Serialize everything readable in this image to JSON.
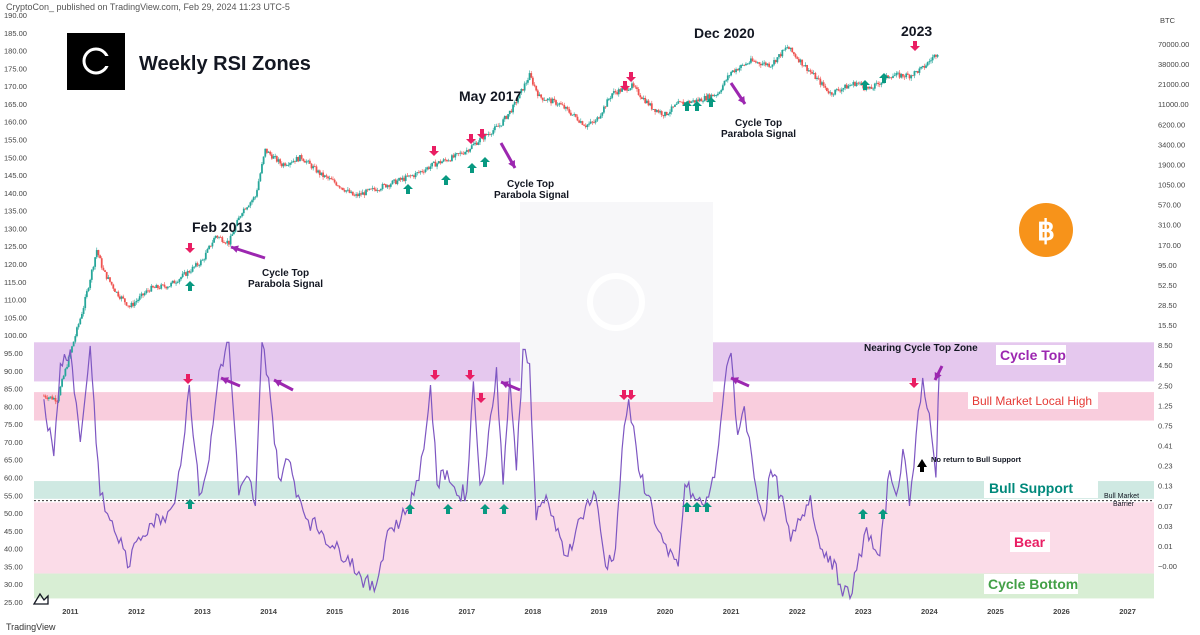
{
  "header": {
    "published": "CryptoCon_ published on TradingView.com, Feb 29, 2024 11:23 UTC-5",
    "footer_brand": "TradingView"
  },
  "title": "Weekly RSI Zones",
  "colors": {
    "price_up": "#26a69a",
    "price_down": "#ef5350",
    "rsi_line": "#7e57c2",
    "arrow_up": "#089981",
    "arrow_down": "#e91e63",
    "annotation_arrow": "#9c27b0",
    "cycle_top_zone": "#e1bee7",
    "bull_high_zone": "#f8bbd0",
    "bull_support_zone": "#c8e6c9",
    "bear_zone": "#fce4ec",
    "cycle_bottom_zone": "#dcedc8",
    "bitcoin": "#f7931a"
  },
  "icons": {
    "logo": "cryptocon-logo-icon",
    "coin": "bitcoin-icon",
    "tv": "tradingview-icon"
  },
  "zones": {
    "cycle_top": "Cycle Top",
    "bull_local_high": "Bull Market Local High",
    "bull_support": "Bull Support",
    "bear": "Bear",
    "cycle_bottom": "Cycle Bottom",
    "barrier_line1": "Bull Market",
    "barrier_line2": "Barrier"
  },
  "annotations": {
    "feb2013": "Feb 2013",
    "may2017": "May 2017",
    "dec2020": "Dec 2020",
    "y2023": "2023",
    "cycle_top_line1": "Cycle Top",
    "cycle_top_line2": "Parabola Signal",
    "nearing": "Nearing Cycle Top Zone",
    "no_return": "No return to Bull Support"
  },
  "chart_data": {
    "type": "line",
    "title": "Weekly RSI Zones",
    "xlabel": "",
    "ylabel": "",
    "x_ticks": [
      "2011",
      "2012",
      "2013",
      "2014",
      "2015",
      "2016",
      "2017",
      "2018",
      "2019",
      "2020",
      "2021",
      "2022",
      "2023",
      "2024",
      "2025",
      "2026",
      "2027"
    ],
    "x_range": [
      2010.45,
      2027.4
    ],
    "left_axis": {
      "ticks": [
        "190.00",
        "185.00",
        "180.00",
        "175.00",
        "170.00",
        "165.00",
        "160.00",
        "155.00",
        "150.00",
        "145.00",
        "140.00",
        "135.00",
        "130.00",
        "125.00",
        "120.00",
        "115.00",
        "110.00",
        "105.00",
        "100.00",
        "95.00",
        "90.00",
        "85.00",
        "80.00",
        "75.00",
        "70.00",
        "65.00",
        "60.00",
        "55.00",
        "50.00",
        "45.00",
        "40.00",
        "35.00",
        "30.00",
        "25.00"
      ],
      "range": [
        25,
        190
      ]
    },
    "right_axis": {
      "unit": "BTC",
      "scale": "log",
      "ticks": [
        "70000.00",
        "38000.00",
        "21000.00",
        "11000.00",
        "6200.00",
        "3400.00",
        "1900.00",
        "1050.00",
        "570.00",
        "310.00",
        "170.00",
        "95.00",
        "52.50",
        "28.50",
        "15.50",
        "8.50",
        "4.50",
        "2.50",
        "1.25",
        "0.75",
        "0.41",
        "0.23",
        "0.13",
        "0.07",
        "0.03",
        "0.01",
        "−0.00"
      ]
    },
    "rsi_zones": [
      {
        "name": "Cycle Top",
        "from": 87,
        "to": 98
      },
      {
        "name": "Bull Market Local High",
        "from": 76,
        "to": 84
      },
      {
        "name": "Bull Support",
        "from": 54,
        "to": 59
      },
      {
        "name": "Bear",
        "from": 33,
        "to": 53
      },
      {
        "name": "Cycle Bottom",
        "from": 26,
        "to": 33
      }
    ],
    "bull_market_barrier": 53.5,
    "price_series": {
      "name": "",
      "x": [
        2010.6,
        2010.8,
        2011.0,
        2011.2,
        2011.4,
        2011.5,
        2011.7,
        2011.9,
        2012.2,
        2012.5,
        2012.8,
        2013.0,
        2013.2,
        2013.4,
        2013.6,
        2013.8,
        2013.95,
        2014.2,
        2014.5,
        2014.8,
        2015.0,
        2015.3,
        2015.6,
        2015.9,
        2016.2,
        2016.5,
        2016.8,
        2017.0,
        2017.2,
        2017.5,
        2017.7,
        2017.95,
        2018.1,
        2018.4,
        2018.8,
        2018.95,
        2019.2,
        2019.5,
        2019.8,
        2020.0,
        2020.2,
        2020.5,
        2020.8,
        2021.0,
        2021.3,
        2021.6,
        2021.85,
        2022.0,
        2022.3,
        2022.5,
        2022.9,
        2023.1,
        2023.4,
        2023.7,
        2023.9,
        2024.15
      ],
      "y": [
        83,
        82,
        95,
        108,
        124,
        118,
        112,
        108,
        113,
        114,
        118,
        121,
        128,
        126,
        135,
        139,
        152,
        148,
        150,
        145,
        143,
        139,
        141,
        143,
        145,
        148,
        150,
        152,
        155,
        159,
        164,
        173,
        167,
        165,
        159,
        160,
        168,
        170,
        164,
        162,
        165,
        166,
        168,
        174,
        177,
        176,
        181,
        178,
        172,
        168,
        171,
        169,
        173,
        173,
        175,
        180
      ]
    },
    "rsi_series": {
      "name": "",
      "x": [
        2010.6,
        2010.75,
        2010.85,
        2011.0,
        2011.15,
        2011.3,
        2011.45,
        2011.6,
        2011.8,
        2011.9,
        2012.0,
        2012.2,
        2012.4,
        2012.55,
        2012.7,
        2012.8,
        2012.95,
        2013.1,
        2013.25,
        2013.4,
        2013.55,
        2013.7,
        2013.8,
        2013.9,
        2014.0,
        2014.15,
        2014.3,
        2014.45,
        2014.6,
        2014.8,
        2015.0,
        2015.2,
        2015.4,
        2015.6,
        2015.8,
        2016.0,
        2016.2,
        2016.35,
        2016.45,
        2016.55,
        2016.7,
        2016.85,
        2017.0,
        2017.1,
        2017.2,
        2017.3,
        2017.45,
        2017.55,
        2017.65,
        2017.75,
        2017.85,
        2017.95,
        2018.05,
        2018.2,
        2018.35,
        2018.5,
        2018.65,
        2018.8,
        2018.95,
        2019.1,
        2019.25,
        2019.35,
        2019.45,
        2019.6,
        2019.75,
        2019.9,
        2020.05,
        2020.2,
        2020.3,
        2020.45,
        2020.6,
        2020.75,
        2020.9,
        2021.0,
        2021.1,
        2021.2,
        2021.35,
        2021.5,
        2021.6,
        2021.75,
        2021.9,
        2022.05,
        2022.2,
        2022.35,
        2022.5,
        2022.65,
        2022.8,
        2022.9,
        2023.05,
        2023.15,
        2023.25,
        2023.4,
        2023.5,
        2023.6,
        2023.7,
        2023.8,
        2023.9,
        2024.0,
        2024.1,
        2024.15
      ],
      "y": [
        82,
        66,
        92,
        96,
        70,
        97,
        55,
        48,
        40,
        35,
        42,
        47,
        49,
        52,
        68,
        86,
        55,
        65,
        90,
        98,
        55,
        60,
        52,
        98,
        88,
        60,
        65,
        55,
        48,
        45,
        40,
        38,
        32,
        28,
        45,
        48,
        55,
        68,
        86,
        58,
        62,
        55,
        56,
        87,
        58,
        66,
        91,
        58,
        88,
        62,
        96,
        92,
        48,
        55,
        45,
        38,
        45,
        52,
        55,
        35,
        40,
        68,
        82,
        62,
        55,
        45,
        38,
        35,
        58,
        54,
        52,
        60,
        86,
        95,
        72,
        80,
        60,
        48,
        62,
        55,
        42,
        48,
        55,
        40,
        38,
        30,
        26,
        34,
        46,
        40,
        38,
        62,
        55,
        68,
        52,
        72,
        88,
        78,
        60,
        90
      ]
    },
    "legend": "none",
    "grid": false
  }
}
